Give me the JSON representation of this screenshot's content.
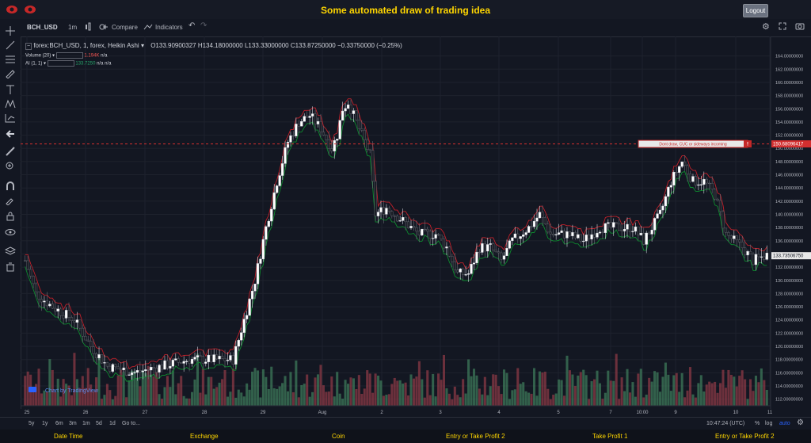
{
  "header": {
    "title": "Some automated draw of trading idea",
    "logout_label": "Logout"
  },
  "toolbar": {
    "symbol": "BCH_USD",
    "interval": "1m",
    "compare_label": "Compare",
    "indicators_label": "Indicators"
  },
  "legend": {
    "main": "forex:BCH_USD, 1, forex, Heikin Ashi",
    "ohlc": "O133.90900327  H134.18000000  L133.33000000  C133.87250000  −0.33750000 (−0.25%)",
    "volume_label": "Volume (20)",
    "volume_value": "1.194K",
    "volume_na": "n/a",
    "ai_label": "AI (1, 1)",
    "ai_value": "133.7250",
    "ai_na1": "n/a",
    "ai_na2": "n/a"
  },
  "annotation": {
    "text": "Dont draw, CUC or sideways incoming",
    "price_label": "150.68096417",
    "marker": "!"
  },
  "last_price_label": "133.73506750",
  "watermark": "Chart by TradingView",
  "price_axis": [
    "164.00000000",
    "162.00000000",
    "160.00000000",
    "158.00000000",
    "156.00000000",
    "154.00000000",
    "152.00000000",
    "150.00000000",
    "148.00000000",
    "146.00000000",
    "144.00000000",
    "142.00000000",
    "140.00000000",
    "138.00000000",
    "136.00000000",
    "134.00000000",
    "132.00000000",
    "130.00000000",
    "128.00000000",
    "126.00000000",
    "124.00000000",
    "122.00000000",
    "120.00000000",
    "118.00000000",
    "116.00000000",
    "114.00000000",
    "112.00000000"
  ],
  "time_axis": [
    "25",
    "26",
    "27",
    "28",
    "29",
    "Aug",
    "2",
    "3",
    "4",
    "5",
    "7",
    "10:00",
    "9",
    "10",
    "11"
  ],
  "bottom": {
    "ranges": [
      "5y",
      "1y",
      "6m",
      "3m",
      "1m",
      "5d",
      "1d"
    ],
    "goto": "Go to...",
    "time": "10:47:24 (UTC)",
    "pct": "%",
    "log": "log",
    "auto": "auto"
  },
  "footer": [
    "Date Time",
    "Exchange",
    "Coin",
    "Entry or Take Profit 2",
    "Take Profit 1",
    "Entry or Take Profit 2"
  ],
  "colors": {
    "bg": "#131722",
    "up": "#d1d4dc",
    "down": "#4c4f57",
    "vol_up": "#3d7a5a",
    "vol_down": "#8b3a46",
    "ma_red": "#c0202a",
    "ma_green": "#0d8a2e",
    "accent": "#ffd600",
    "annot": "#d32f2f"
  },
  "chart_data": {
    "type": "candlestick",
    "ylim": [
      111,
      166
    ],
    "close_path": [
      [
        0,
        133
      ],
      [
        4,
        128
      ],
      [
        10,
        126
      ],
      [
        18,
        124
      ],
      [
        24,
        120
      ],
      [
        30,
        117
      ],
      [
        40,
        116
      ],
      [
        50,
        117
      ],
      [
        60,
        118
      ],
      [
        70,
        118
      ],
      [
        76,
        118
      ],
      [
        80,
        124
      ],
      [
        84,
        130
      ],
      [
        88,
        138
      ],
      [
        92,
        145
      ],
      [
        96,
        151
      ],
      [
        100,
        154
      ],
      [
        104,
        155
      ],
      [
        108,
        153
      ],
      [
        112,
        150
      ],
      [
        114,
        152
      ],
      [
        116,
        156
      ],
      [
        118,
        157
      ],
      [
        122,
        153
      ],
      [
        126,
        149
      ],
      [
        128,
        140
      ],
      [
        132,
        141
      ],
      [
        138,
        139
      ],
      [
        144,
        137
      ],
      [
        150,
        137
      ],
      [
        154,
        135
      ],
      [
        158,
        131
      ],
      [
        162,
        131
      ],
      [
        166,
        135
      ],
      [
        170,
        135
      ],
      [
        174,
        133
      ],
      [
        178,
        136
      ],
      [
        184,
        138
      ],
      [
        188,
        140
      ],
      [
        192,
        137
      ],
      [
        198,
        137
      ],
      [
        204,
        136
      ],
      [
        210,
        138
      ],
      [
        216,
        138
      ],
      [
        222,
        138
      ],
      [
        226,
        136
      ],
      [
        232,
        140
      ],
      [
        236,
        145
      ],
      [
        240,
        148
      ],
      [
        244,
        145
      ],
      [
        248,
        145
      ],
      [
        252,
        143
      ],
      [
        256,
        137
      ],
      [
        262,
        135
      ],
      [
        266,
        133
      ],
      [
        272,
        134
      ]
    ],
    "count": 272
  }
}
